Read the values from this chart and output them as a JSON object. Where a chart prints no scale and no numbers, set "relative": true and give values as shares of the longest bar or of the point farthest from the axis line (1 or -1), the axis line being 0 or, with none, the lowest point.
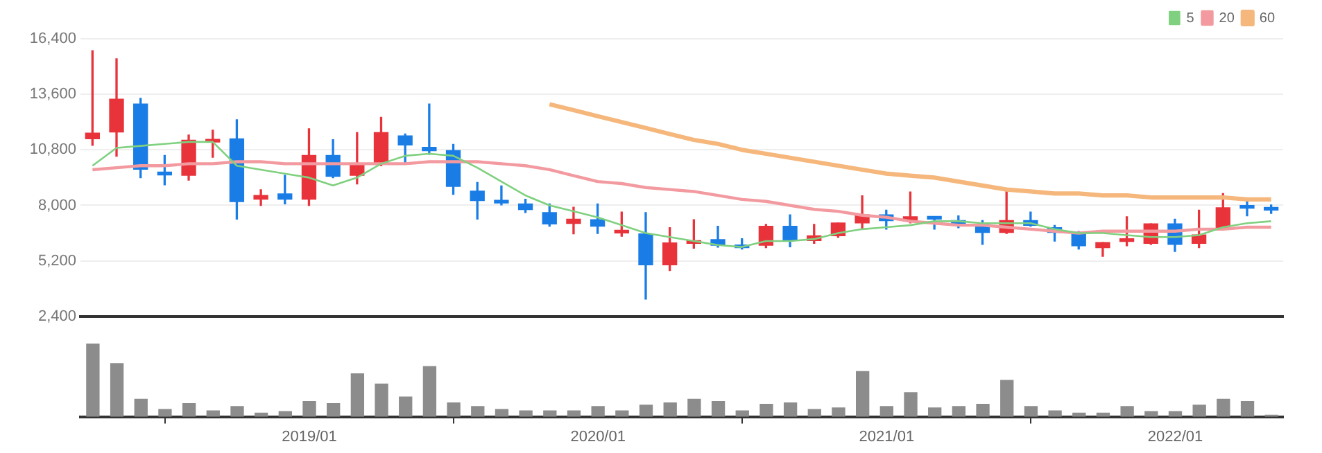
{
  "chart_data": [
    {
      "type": "candlestick",
      "categories": [
        null,
        null,
        null,
        null,
        null,
        null,
        null,
        null,
        null,
        null,
        null,
        null,
        null,
        null,
        null,
        null,
        null,
        null,
        null,
        null,
        null,
        null,
        null,
        null,
        null,
        null,
        null,
        null,
        null,
        null,
        null,
        null,
        null,
        null,
        null,
        null,
        null,
        null,
        null,
        null,
        null,
        null,
        null,
        null,
        null,
        null,
        null,
        null,
        null,
        null
      ],
      "ohlc": [
        [
          11360,
          15800,
          11024,
          11648
        ],
        [
          11696,
          15392,
          10472,
          13352
        ],
        [
          13112,
          13400,
          9392,
          9824
        ],
        [
          9680,
          10520,
          9032,
          9536
        ],
        [
          9512,
          11552,
          9272,
          11288
        ],
        [
          11192,
          11792,
          10424,
          11312
        ],
        [
          11360,
          12320,
          7304,
          8192
        ],
        [
          8312,
          8792,
          8000,
          8504
        ],
        [
          8576,
          9512,
          8072,
          8312
        ],
        [
          8312,
          11864,
          8000,
          10520
        ],
        [
          10520,
          11312,
          9392,
          9464
        ],
        [
          9512,
          11672,
          9080,
          10088
        ],
        [
          10088,
          12440,
          9992,
          11672
        ],
        [
          11504,
          11600,
          10160,
          11048
        ],
        [
          10928,
          13112,
          10568,
          10760
        ],
        [
          10760,
          11072,
          8552,
          8960
        ],
        [
          8720,
          9152,
          7304,
          8240
        ],
        [
          8240,
          8984,
          8024,
          8120
        ],
        [
          8072,
          8312,
          7640,
          7784
        ],
        [
          7640,
          8072,
          6944,
          7064
        ],
        [
          7088,
          7904,
          6560,
          7304
        ],
        [
          7280,
          8072,
          6584,
          6944
        ],
        [
          6608,
          7664,
          6440,
          6704
        ],
        [
          6560,
          7640,
          3272,
          5000
        ],
        [
          5000,
          6872,
          4712,
          6104
        ],
        [
          6080,
          7280,
          5840,
          6176
        ],
        [
          6272,
          6944,
          5888,
          5984
        ],
        [
          5960,
          6320,
          5792,
          5864
        ],
        [
          5984,
          7040,
          5864,
          6944
        ],
        [
          6944,
          7520,
          5912,
          6224
        ],
        [
          6224,
          7040,
          6080,
          6464
        ],
        [
          6464,
          7112,
          6392,
          7112
        ],
        [
          7112,
          8480,
          6800,
          7520
        ],
        [
          7520,
          7760,
          6800,
          7232
        ],
        [
          7232,
          8672,
          7112,
          7424
        ],
        [
          7424,
          7424,
          6800,
          7304
        ],
        [
          7232,
          7472,
          6872,
          6992
        ],
        [
          7040,
          7232,
          6032,
          6632
        ],
        [
          6632,
          8720,
          6584,
          7232
        ],
        [
          7232,
          7664,
          6944,
          6992
        ],
        [
          6872,
          6992,
          6200,
          6632
        ],
        [
          6632,
          6680,
          5792,
          5960
        ],
        [
          5864,
          6128,
          5432,
          6128
        ],
        [
          6176,
          7424,
          5960,
          6272
        ],
        [
          6080,
          7064,
          6032,
          7064
        ],
        [
          7064,
          7304,
          5672,
          6032
        ],
        [
          6080,
          7760,
          5864,
          6512
        ],
        [
          6800,
          8600,
          6752,
          7880
        ],
        [
          7952,
          8312,
          7472,
          7856
        ],
        [
          7856,
          8024,
          7592,
          7760
        ]
      ],
      "colors": [
        "#e8333b",
        "#e8333b",
        "#1a7de6",
        "#1a7de6",
        "#e8333b",
        "#e8333b",
        "#1a7de6",
        "#e8333b",
        "#1a7de6",
        "#e8333b",
        "#1a7de6",
        "#e8333b",
        "#e8333b",
        "#1a7de6",
        "#1a7de6",
        "#1a7de6",
        "#1a7de6",
        "#1a7de6",
        "#1a7de6",
        "#1a7de6",
        "#e8333b",
        "#1a7de6",
        "#e8333b",
        "#1a7de6",
        "#e8333b",
        "#e8333b",
        "#1a7de6",
        "#1a7de6",
        "#e8333b",
        "#1a7de6",
        "#e8333b",
        "#e8333b",
        "#e8333b",
        "#1a7de6",
        "#e8333b",
        "#1a7de6",
        "#1a7de6",
        "#1a7de6",
        "#e8333b",
        "#1a7de6",
        "#1a7de6",
        "#1a7de6",
        "#e8333b",
        "#e8333b",
        "#e8333b",
        "#1a7de6",
        "#e8333b",
        "#e8333b",
        "#1a7de6",
        "#1a7de6"
      ],
      "series": [
        {
          "type": "line",
          "name": "5",
          "color": "#7fd07f",
          "values": [
            10000,
            10900,
            11000,
            11100,
            11200,
            11200,
            10000,
            9800,
            9600,
            9400,
            9000,
            9400,
            10100,
            10500,
            10600,
            10500,
            9900,
            9200,
            8500,
            8000,
            7700,
            7400,
            7000,
            6600,
            6400,
            6200,
            6000,
            5900,
            6200,
            6200,
            6300,
            6600,
            6800,
            6900,
            7000,
            7200,
            7200,
            7100,
            7100,
            7100,
            6800,
            6600,
            6600,
            6500,
            6400,
            6400,
            6500,
            6900,
            7100,
            7200
          ]
        },
        {
          "type": "line",
          "name": "20",
          "color": "#f29a9f",
          "values": [
            9800,
            9900,
            10000,
            10000,
            10100,
            10100,
            10200,
            10200,
            10100,
            10100,
            10100,
            10100,
            10100,
            10100,
            10200,
            10200,
            10200,
            10100,
            10000,
            9800,
            9500,
            9200,
            9100,
            8900,
            8800,
            8700,
            8500,
            8300,
            8200,
            8000,
            7800,
            7700,
            7500,
            7400,
            7200,
            7100,
            7000,
            7000,
            6900,
            6800,
            6700,
            6600,
            6700,
            6700,
            6700,
            6700,
            6800,
            6800,
            6900,
            6900
          ]
        },
        {
          "type": "line",
          "name": "60",
          "color": "#f5b77c",
          "values": [
            null,
            null,
            null,
            null,
            null,
            null,
            null,
            null,
            null,
            null,
            null,
            null,
            null,
            null,
            null,
            null,
            null,
            null,
            null,
            13100,
            12800,
            12500,
            12200,
            11900,
            11600,
            11300,
            11100,
            10800,
            10600,
            10400,
            10200,
            10000,
            9800,
            9600,
            9500,
            9400,
            9200,
            9000,
            8800,
            8700,
            8600,
            8600,
            8500,
            8500,
            8400,
            8400,
            8400,
            8400,
            8300,
            8300
          ]
        }
      ],
      "ylim": [
        2400,
        16400
      ],
      "yticks": [
        {
          "value": 2400,
          "label": "2,400"
        },
        {
          "value": 5200,
          "label": "5,200"
        },
        {
          "value": 8000,
          "label": "8,000"
        },
        {
          "value": 10800,
          "label": "10,800"
        },
        {
          "value": 13600,
          "label": "13,600"
        },
        {
          "value": 16400,
          "label": "16,400"
        }
      ],
      "grid": "y",
      "legend": "top right",
      "tick_labels": "y",
      "marker": "none",
      "line_style": "solid"
    },
    {
      "type": "bar",
      "relative": true,
      "color": "#8c8c8c",
      "x": [
        "2018-04",
        "2018-05",
        "2018-06",
        "2018-07",
        "2018-08",
        "2018-09",
        "2018-10",
        "2018-11",
        "2018-12",
        "2019-01",
        "2019-02",
        "2019-03",
        "2019-04",
        "2019-05",
        "2019-06",
        "2019-07",
        "2019-08",
        "2019-09",
        "2019-10",
        "2019-11",
        "2019-12",
        "2020-01",
        "2020-02",
        "2020-03",
        "2020-04",
        "2020-05",
        "2020-06",
        "2020-07",
        "2020-08",
        "2020-09",
        "2020-10",
        "2020-11",
        "2020-12",
        "2021-01",
        "2021-02",
        "2021-03",
        "2021-04",
        "2021-05",
        "2021-06",
        "2021-07",
        "2021-08",
        "2021-09",
        "2021-10",
        "2021-11",
        "2021-12",
        "2022-01",
        "2022-02",
        "2022-03",
        "2022-04",
        "2022-05"
      ],
      "values": [
        1,
        0.73,
        0.24,
        0.1,
        0.18,
        0.08,
        0.14,
        0.05,
        0.07,
        0.21,
        0.18,
        0.59,
        0.45,
        0.27,
        0.69,
        0.19,
        0.14,
        0.1,
        0.08,
        0.08,
        0.08,
        0.14,
        0.08,
        0.16,
        0.19,
        0.24,
        0.21,
        0.08,
        0.17,
        0.19,
        0.1,
        0.12,
        0.62,
        0.14,
        0.33,
        0.12,
        0.14,
        0.17,
        0.5,
        0.14,
        0.08,
        0.05,
        0.05,
        0.14,
        0.07,
        0.07,
        0.16,
        0.24,
        0.21,
        0.02
      ],
      "xlim": [
        "2018-03-16",
        "2022-05-16"
      ],
      "xticks": [
        {
          "value": "2019-01",
          "label": "2019/01"
        },
        {
          "value": "2020-01",
          "label": "2020/01"
        },
        {
          "value": "2021-01",
          "label": "2021/01"
        },
        {
          "value": "2022-01",
          "label": "2022/01"
        }
      ],
      "tick_labels": "x"
    }
  ]
}
